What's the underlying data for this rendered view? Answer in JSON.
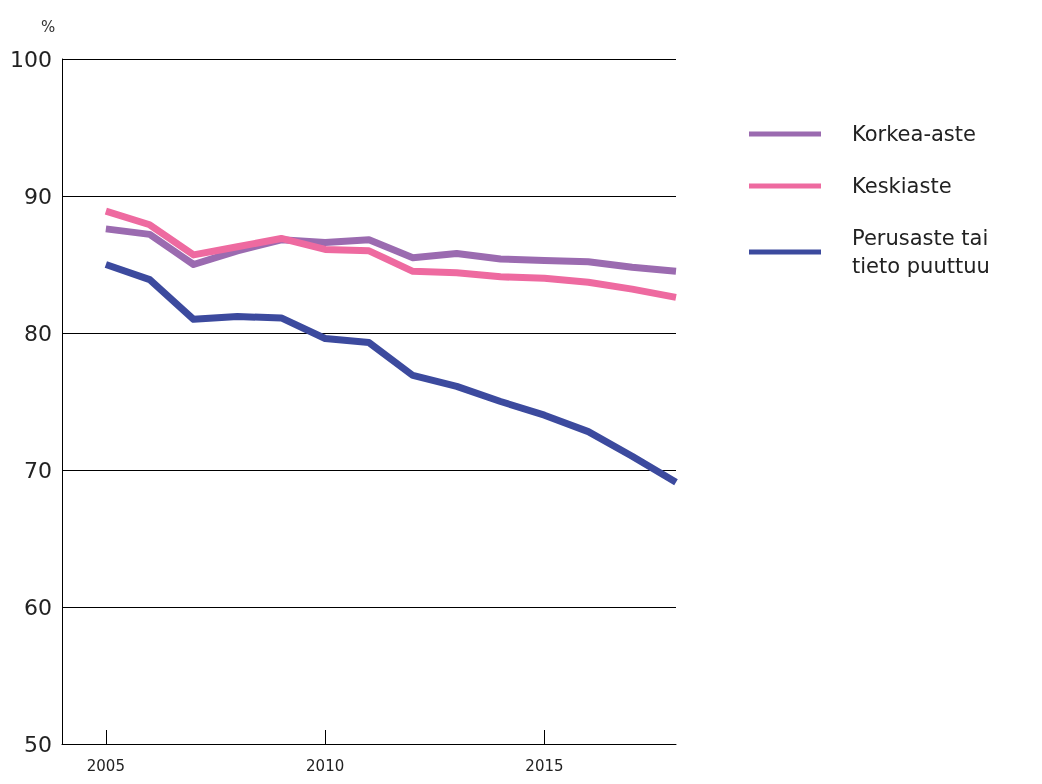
{
  "chart_data": {
    "type": "line",
    "ylabel": "%",
    "x": [
      2005,
      2006,
      2007,
      2008,
      2009,
      2010,
      2011,
      2012,
      2013,
      2014,
      2015,
      2016,
      2017,
      2018
    ],
    "series": [
      {
        "name": "Korkea-aste",
        "color": "#9b6bb0",
        "values": [
          87.6,
          87.2,
          85.0,
          86.0,
          86.8,
          86.6,
          86.8,
          85.5,
          85.8,
          85.4,
          85.3,
          85.2,
          84.8,
          84.5
        ]
      },
      {
        "name": "Keskiaste",
        "color": "#ee6aa0",
        "values": [
          88.9,
          87.9,
          85.7,
          86.3,
          86.9,
          86.1,
          86.0,
          84.5,
          84.4,
          84.1,
          84.0,
          83.7,
          83.2,
          82.6
        ]
      },
      {
        "name": "Perusaste tai tieto puuttuu",
        "color": "#3c4a9e",
        "values": [
          85.0,
          83.9,
          81.0,
          81.2,
          81.1,
          79.6,
          79.3,
          76.9,
          76.1,
          75.0,
          74.0,
          72.8,
          71.0,
          69.1
        ]
      }
    ],
    "xlim": [
      2004,
      2018
    ],
    "xticks": [
      2005,
      2010,
      2015
    ],
    "ylim": [
      50,
      100
    ],
    "yticks": [
      50,
      60,
      70,
      80,
      90,
      100
    ],
    "grid": "y",
    "legend": "right",
    "marker": "none",
    "line_style": "solid"
  }
}
